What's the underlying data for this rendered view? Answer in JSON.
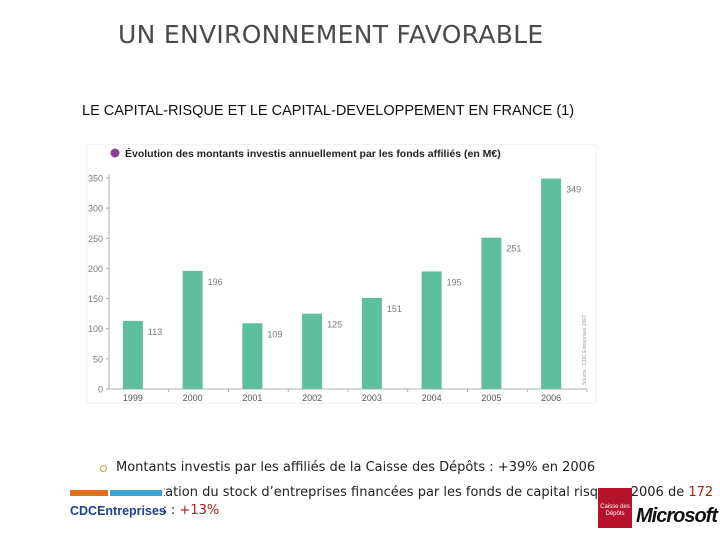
{
  "slide": {
    "title": "UN ENVIRONNEMENT FAVORABLE",
    "subtitle": "LE CAPITAL-RISQUE ET LE CAPITAL-DEVELOPPEMENT EN FRANCE (1)"
  },
  "bullets": {
    "b1": "Montants investis par les affiliés de la Caisse des Dépôts : +39% en 2006",
    "b2_prefix": "tation du stock d’entreprises financées par les fonds de capital risque ",
    "b2_suffix": "n 2006 de ",
    "b2_value": "172",
    "b3_prefix": "s : ",
    "b3_value": "+13%"
  },
  "logos": {
    "cdc_text": "CDCEntreprises",
    "caisse_text": "Caisse des Dépôts",
    "ms_text": "Microsoft"
  },
  "chart_data": {
    "type": "bar",
    "title": "Évolution des montants investis annuellement par les fonds affiliés (en M€)",
    "categories": [
      "1999",
      "2000",
      "2001",
      "2002",
      "2003",
      "2004",
      "2005",
      "2006"
    ],
    "values": [
      113,
      196,
      109,
      125,
      151,
      195,
      251,
      349
    ],
    "ylim": [
      0,
      350
    ],
    "yticks": [
      0,
      50,
      100,
      150,
      200,
      250,
      300,
      350
    ],
    "grid": false,
    "source_note": "Source : CDC Entreprises 2007",
    "colors": {
      "bar": "#5dbf9e",
      "label": "#7a7a7a",
      "title_dot": "#8a3f8f",
      "axis": "#b0b0b0"
    }
  }
}
